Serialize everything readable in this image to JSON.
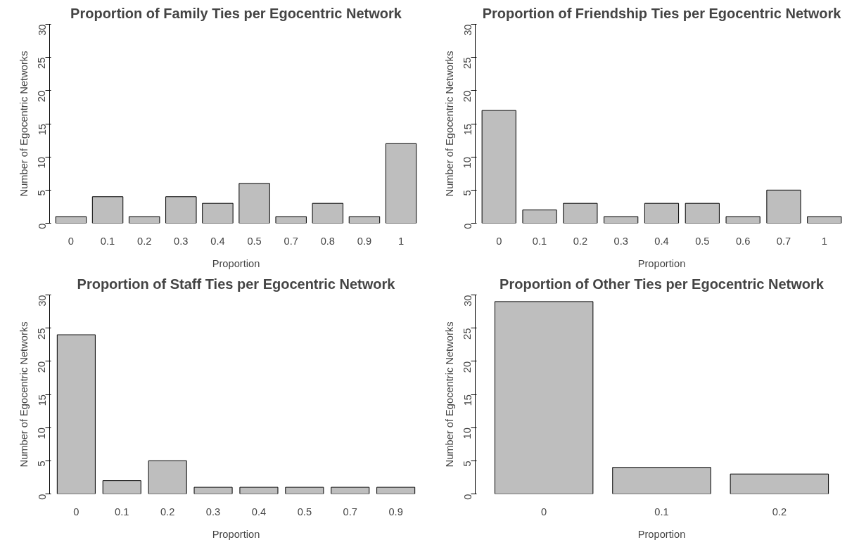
{
  "chart_data": [
    {
      "type": "bar",
      "title": "Proportion of Family Ties per Egocentric Network",
      "xlabel": "Proportion",
      "ylabel": "Number of Egocentric Networks",
      "categories": [
        "0",
        "0.1",
        "0.2",
        "0.3",
        "0.4",
        "0.5",
        "0.7",
        "0.8",
        "0.9",
        "1"
      ],
      "values": [
        1,
        4,
        1,
        4,
        3,
        6,
        1,
        3,
        1,
        12
      ],
      "color": "#bebebe",
      "ylim": [
        0,
        30
      ],
      "yticks": [
        0,
        5,
        10,
        15,
        20,
        25,
        30
      ]
    },
    {
      "type": "bar",
      "title": "Proportion of Friendship Ties per Egocentric Network",
      "xlabel": "Proportion",
      "ylabel": "Number of Egocentric Networks",
      "categories": [
        "0",
        "0.1",
        "0.2",
        "0.3",
        "0.4",
        "0.5",
        "0.6",
        "0.7",
        "1"
      ],
      "values": [
        17,
        2,
        3,
        1,
        3,
        3,
        1,
        5,
        1
      ],
      "color": "#bebebe",
      "ylim": [
        0,
        30
      ],
      "yticks": [
        0,
        5,
        10,
        15,
        20,
        25,
        30
      ]
    },
    {
      "type": "bar",
      "title": "Proportion of Staff Ties per Egocentric Network",
      "xlabel": "Proportion",
      "ylabel": "Number of Egocentric Networks",
      "categories": [
        "0",
        "0.1",
        "0.2",
        "0.3",
        "0.4",
        "0.5",
        "0.7",
        "0.9"
      ],
      "values": [
        24,
        2,
        5,
        1,
        1,
        1,
        1,
        1
      ],
      "color": "#bebebe",
      "ylim": [
        0,
        30
      ],
      "yticks": [
        0,
        5,
        10,
        15,
        20,
        25,
        30
      ]
    },
    {
      "type": "bar",
      "title": "Proportion of Other Ties per Egocentric Network",
      "xlabel": "Proportion",
      "ylabel": "Number of Egocentric Networks",
      "categories": [
        "0",
        "0.1",
        "0.2"
      ],
      "values": [
        29,
        4,
        3
      ],
      "color": "#bebebe",
      "ylim": [
        0,
        30
      ],
      "yticks": [
        0,
        5,
        10,
        15,
        20,
        25,
        30
      ]
    }
  ]
}
